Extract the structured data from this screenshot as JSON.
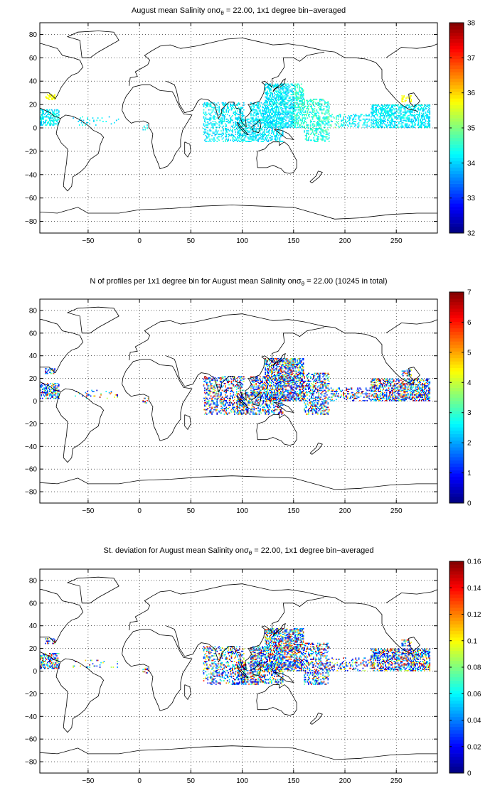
{
  "chart_data": [
    {
      "type": "heatmap",
      "title_main": "August mean Salinity on",
      "title_sigma": "σ",
      "title_sub": "θ",
      "title_rest": " = 22.00, 1x1 degree bin−averaged",
      "x_ticks": [
        -50,
        0,
        50,
        100,
        150,
        200,
        250
      ],
      "y_ticks": [
        80,
        60,
        40,
        20,
        0,
        -20,
        -40,
        -60,
        -80
      ],
      "x_tick_labels": [
        "−50",
        "0",
        "50",
        "100",
        "150",
        "200",
        "250"
      ],
      "y_tick_labels": [
        "80",
        "60",
        "40",
        "20",
        "0",
        "−20",
        "−40",
        "−60",
        "−80"
      ],
      "xlim": [
        -97,
        290
      ],
      "ylim": [
        -90,
        90
      ],
      "grid": true,
      "colormap": "jet",
      "colorbar": {
        "min": 32,
        "max": 38,
        "ticks": [
          32,
          33,
          34,
          35,
          36,
          37,
          38
        ],
        "tick_labels": [
          "32",
          "33",
          "34",
          "35",
          "36",
          "37",
          "38"
        ]
      },
      "value_hint": {
        "low": 33.6,
        "high": 35.4,
        "hot_spots": 36.0
      }
    },
    {
      "type": "heatmap",
      "title_main": "N of profiles per 1x1 degree bin for August mean Salinity on",
      "title_sigma": "σ",
      "title_sub": "θ",
      "title_rest": " = 22.00 (10245 in total)",
      "x_ticks": [
        -50,
        0,
        50,
        100,
        150,
        200,
        250
      ],
      "y_ticks": [
        80,
        60,
        40,
        20,
        0,
        -20,
        -40,
        -60,
        -80
      ],
      "x_tick_labels": [
        "−50",
        "0",
        "50",
        "100",
        "150",
        "200",
        "250"
      ],
      "y_tick_labels": [
        "80",
        "60",
        "40",
        "20",
        "0",
        "−20",
        "−40",
        "−60",
        "−80"
      ],
      "xlim": [
        -97,
        290
      ],
      "ylim": [
        -90,
        90
      ],
      "grid": true,
      "colormap": "jet",
      "colorbar": {
        "min": 0,
        "max": 7,
        "ticks": [
          0,
          1,
          2,
          3,
          4,
          5,
          6,
          7
        ],
        "tick_labels": [
          "0",
          "1",
          "2",
          "3",
          "4",
          "5",
          "6",
          "7"
        ]
      },
      "value_hint": {
        "low": 0,
        "high": 7
      }
    },
    {
      "type": "heatmap",
      "title_main": "St. deviation for August mean Salinity on",
      "title_sigma": "σ",
      "title_sub": "θ",
      "title_rest": " = 22.00, 1x1 degree bin−averaged",
      "x_ticks": [
        -50,
        0,
        50,
        100,
        150,
        200,
        250
      ],
      "y_ticks": [
        80,
        60,
        40,
        20,
        0,
        -20,
        -40,
        -60,
        -80
      ],
      "x_tick_labels": [
        "−50",
        "0",
        "50",
        "100",
        "150",
        "200",
        "250"
      ],
      "y_tick_labels": [
        "80",
        "60",
        "40",
        "20",
        "0",
        "−20",
        "−40",
        "−60",
        "−80"
      ],
      "xlim": [
        -97,
        290
      ],
      "ylim": [
        -90,
        90
      ],
      "grid": true,
      "colormap": "jet",
      "colorbar": {
        "min": 0,
        "max": 0.16,
        "ticks": [
          0,
          0.02,
          0.04,
          0.06,
          0.08,
          0.1,
          0.12,
          0.14,
          0.16
        ],
        "tick_labels": [
          "0",
          "0.02",
          "0.04",
          "0.06",
          "0.08",
          "0.1",
          "0.12",
          "0.14",
          "0.16"
        ]
      },
      "value_hint": {
        "low": 0,
        "high": 0.16
      }
    }
  ],
  "data_regions": [
    {
      "name": "caribbean",
      "lon": [
        -97,
        -78
      ],
      "lat": [
        2,
        16
      ],
      "density": 0.55
    },
    {
      "name": "gulf-coast",
      "lon": [
        -92,
        -82
      ],
      "lat": [
        24,
        29
      ],
      "density": 0.5
    },
    {
      "name": "central-atlantic",
      "lon": [
        -65,
        -20
      ],
      "lat": [
        2,
        10
      ],
      "density": 0.1
    },
    {
      "name": "gulf-of-guinea",
      "lon": [
        3,
        9
      ],
      "lat": [
        -2,
        3
      ],
      "density": 0.35
    },
    {
      "name": "arabian-sea-bay-of-bengal",
      "lon": [
        62,
        102
      ],
      "lat": [
        -12,
        22
      ],
      "density": 0.35
    },
    {
      "name": "indonesian-seas",
      "lon": [
        95,
        140
      ],
      "lat": [
        -12,
        8
      ],
      "density": 0.45
    },
    {
      "name": "south-china-sea",
      "lon": [
        108,
        122
      ],
      "lat": [
        4,
        22
      ],
      "density": 0.5
    },
    {
      "name": "philippine-sea",
      "lon": [
        122,
        160
      ],
      "lat": [
        0,
        38
      ],
      "density": 0.6
    },
    {
      "name": "western-pacific",
      "lon": [
        160,
        185
      ],
      "lat": [
        -12,
        25
      ],
      "density": 0.4
    },
    {
      "name": "central-pacific",
      "lon": [
        185,
        225
      ],
      "lat": [
        0,
        12
      ],
      "density": 0.28
    },
    {
      "name": "eastern-pacific",
      "lon": [
        225,
        283
      ],
      "lat": [
        0,
        20
      ],
      "density": 0.55
    },
    {
      "name": "hawaii",
      "lon": [
        255,
        265
      ],
      "lat": [
        22,
        28
      ],
      "density": 0.5
    }
  ]
}
